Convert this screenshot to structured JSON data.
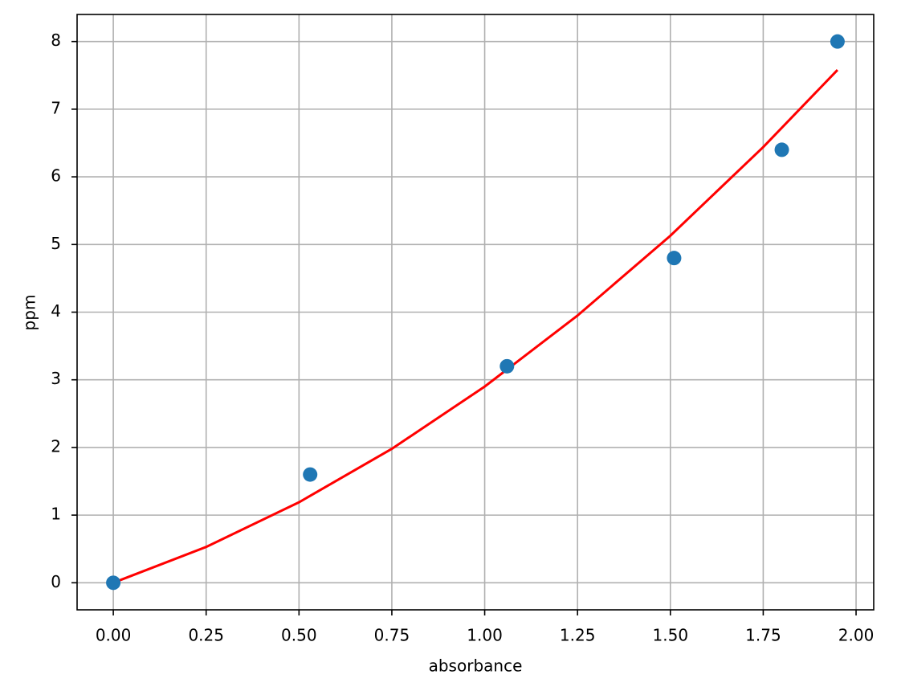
{
  "chart_data": {
    "type": "scatter",
    "x_label": "absorbance",
    "y_label": "ppm",
    "xlim": [
      -0.0975,
      2.0475
    ],
    "ylim": [
      -0.4,
      8.4
    ],
    "xticks": [
      {
        "value": 0,
        "label": "0.00"
      },
      {
        "value": 0.25,
        "label": "0.25"
      },
      {
        "value": 0.5,
        "label": "0.50"
      },
      {
        "value": 0.75,
        "label": "0.75"
      },
      {
        "value": 1,
        "label": "1.00"
      },
      {
        "value": 1.25,
        "label": "1.25"
      },
      {
        "value": 1.5,
        "label": "1.50"
      },
      {
        "value": 1.75,
        "label": "1.75"
      },
      {
        "value": 2,
        "label": "2.00"
      }
    ],
    "yticks": [
      0,
      1,
      2,
      3,
      4,
      5,
      6,
      7,
      8
    ],
    "grid": true,
    "series": [
      {
        "type": "line",
        "color": "#ff0000",
        "x": [
          0,
          0.25,
          0.5,
          0.75,
          1.0,
          1.25,
          1.5,
          1.75,
          1.95
        ],
        "values": [
          0,
          0.53,
          1.19,
          1.98,
          2.9,
          3.95,
          5.13,
          6.44,
          7.58
        ]
      },
      {
        "type": "scatter",
        "color": "#1f77b4",
        "x": [
          0,
          0.53,
          1.06,
          1.51,
          1.8,
          1.95
        ],
        "values": [
          0,
          1.6,
          3.2,
          4.8,
          6.4,
          8.0
        ]
      }
    ]
  }
}
